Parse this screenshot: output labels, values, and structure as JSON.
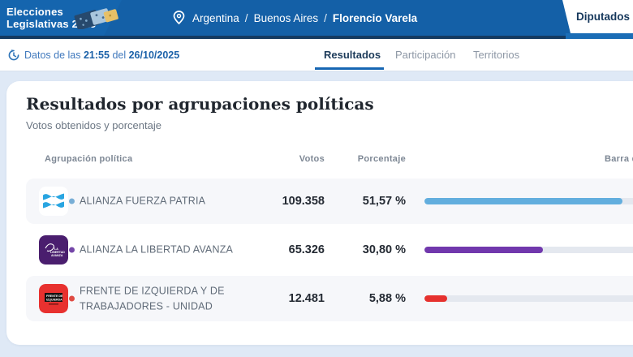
{
  "header": {
    "logo": {
      "line1": "Elecciones",
      "line2": "Legislativas 2025",
      "icon": "ballots-logo"
    },
    "breadcrumb": {
      "items": [
        "Argentina",
        "Buenos Aires",
        "Florencio Varela"
      ],
      "separator": "/"
    },
    "chamber_tab": {
      "label": "Diputados"
    }
  },
  "statusbar": {
    "icon": "refresh-clock-icon",
    "prefix": "Datos de las",
    "time": "21:55",
    "connector": "del",
    "date": "26/10/2025"
  },
  "nav_tabs": {
    "items": [
      {
        "label": "Resultados",
        "active": true
      },
      {
        "label": "Participación",
        "active": false
      },
      {
        "label": "Territorios",
        "active": false
      }
    ]
  },
  "results_card": {
    "title": "Resultados por agrupaciones políticas",
    "subtitle": "Votos obtenidos y porcentaje",
    "columns": {
      "party": "Agrupación política",
      "votes": "Votos",
      "percentage": "Porcentaje",
      "bar": "Barra de votos"
    },
    "rows": [
      {
        "party": "ALIANZA FUERZA PATRIA",
        "votes": "109.358",
        "percentage": "51,57 %",
        "percent_value": 51.57,
        "bar_color": "#62aede",
        "bullet_color": "#78aed6",
        "logo": "fuerza-patria-flag-logo"
      },
      {
        "party": "ALIANZA LA LIBERTAD AVANZA",
        "votes": "65.326",
        "percentage": "30,80 %",
        "percent_value": 30.8,
        "bar_color": "#7138ad",
        "bullet_color": "#7446a8",
        "logo": "libertad-avanza-logo",
        "logo_text": "LA LIBERTAD AVANZA"
      },
      {
        "party": "FRENTE DE IZQUIERDA Y DE TRABAJADORES - UNIDAD",
        "votes": "12.481",
        "percentage": "5,88 %",
        "percent_value": 5.88,
        "bar_color": "#e6312e",
        "bullet_color": "#df4b43",
        "logo": "frente-izquierda-logo",
        "logo_text": "FRENTE DE IZQUIERDA"
      }
    ],
    "colors": {
      "bar_track": "#e4e8ef",
      "header_blue": "#1565ae",
      "page_bg": "#dfe9f6",
      "accent_underline": "#1766b3"
    }
  }
}
